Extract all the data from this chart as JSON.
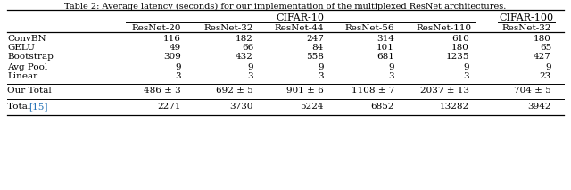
{
  "title": "Table 2: Average latency (seconds) for our implementation of the multiplexed ResNet architectures.",
  "cifar10_header": "CIFAR-10",
  "cifar100_header": "CIFAR-100",
  "col_headers": [
    "ResNet-20",
    "ResNet-32",
    "ResNet-44",
    "ResNet-56",
    "ResNet-110",
    "ResNet-32"
  ],
  "row_labels": [
    "ConvBN",
    "GELU",
    "Bootstrap",
    "Avg Pool",
    "Linear",
    "Our Total",
    "Total [15]"
  ],
  "rows": [
    [
      "116",
      "182",
      "247",
      "314",
      "610",
      "180"
    ],
    [
      "49",
      "66",
      "84",
      "101",
      "180",
      "65"
    ],
    [
      "309",
      "432",
      "558",
      "681",
      "1235",
      "427"
    ],
    [
      "9",
      "9",
      "9",
      "9",
      "9",
      "9"
    ],
    [
      "3",
      "3",
      "3",
      "3",
      "3",
      "23"
    ],
    [
      "486 ± 3",
      "692 ± 5",
      "901 ± 6",
      "1108 ± 7",
      "2037 ± 13",
      "704 ± 5"
    ],
    [
      "2271",
      "3730",
      "5224",
      "6852",
      "13282",
      "3942"
    ]
  ],
  "bg_color": "#ffffff",
  "text_color": "#000000",
  "ref_color": "#1f6eb5",
  "title_fontsize": 7.0,
  "header_fontsize": 8.0,
  "cell_fontsize": 7.5
}
